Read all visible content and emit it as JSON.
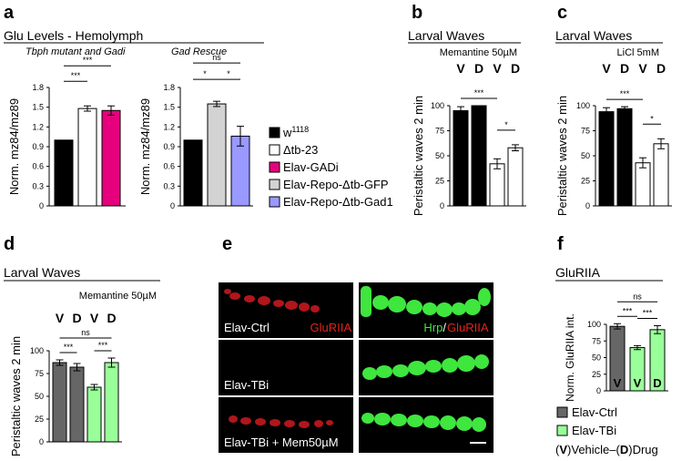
{
  "panels": {
    "a": {
      "letter": "a",
      "title": "Glu Levels - Hemolymph",
      "sub_left": "Tbph mutant and Gadi",
      "sub_right": "Gad Rescue"
    },
    "b": {
      "letter": "b",
      "title": "Larval Waves",
      "condition": "Memantine 50µM"
    },
    "c": {
      "letter": "c",
      "title": "Larval Waves",
      "condition": "LiCl 5mM"
    },
    "d": {
      "letter": "d",
      "title": "Larval Waves",
      "condition": "Memantine 50µM"
    },
    "e": {
      "letter": "e",
      "rows": [
        "Elav-Ctrl",
        "Elav-TBi",
        "Elav-TBi + Mem50µM"
      ],
      "stain_left": "GluRIIA",
      "stain_right_green": "Hrp",
      "stain_right_sep": "/",
      "stain_right_red": "GluRIIA"
    },
    "f": {
      "letter": "f",
      "title": "GluRIIA"
    }
  },
  "legend_a": [
    {
      "label": "w",
      "sup": "1118",
      "color": "#000000"
    },
    {
      "label": "Δtb-23",
      "color": "#ffffff"
    },
    {
      "label": "Elav-GADi",
      "color": "#e6007e"
    },
    {
      "label": "Elav-Repo-Δtb-GFP",
      "color": "#d3d3d3"
    },
    {
      "label": "Elav-Repo-Δtb-Gad1",
      "color": "#9999ff"
    }
  ],
  "legend_f": [
    {
      "label": "Elav-Ctrl",
      "color": "#666666"
    },
    {
      "label": "Elav-TBi",
      "color": "#99ff99"
    }
  ],
  "legend_f_note": {
    "v": "V",
    "vtext": "Vehicle–(",
    "d": "D",
    "dtext": ")Drug"
  },
  "chart_data": [
    {
      "id": "a_left",
      "type": "bar",
      "ylabel": "Norm. mz84/mz89",
      "ylim": [
        0,
        1.8
      ],
      "yticks": [
        "0",
        "0.3",
        "0.6",
        "0.9",
        "1.2",
        "1.5",
        "1.8"
      ],
      "values": [
        1.0,
        1.48,
        1.45
      ],
      "errors": [
        0,
        0.04,
        0.07
      ],
      "colors": [
        "#000000",
        "#ffffff",
        "#e6007e"
      ],
      "sig": [
        "***",
        "***"
      ]
    },
    {
      "id": "a_right",
      "type": "bar",
      "ylabel": "Norm. mz84/mz89",
      "ylim": [
        0,
        1.8
      ],
      "yticks": [
        "0",
        "0.3",
        "0.6",
        "0.9",
        "1.2",
        "1.5",
        "1.8"
      ],
      "values": [
        1.0,
        1.55,
        1.06
      ],
      "errors": [
        0,
        0.04,
        0.15
      ],
      "colors": [
        "#000000",
        "#d3d3d3",
        "#9999ff"
      ],
      "sig": [
        "ns",
        "*",
        "*"
      ]
    },
    {
      "id": "b",
      "type": "bar",
      "ylabel": "Peristaltic waves 2 min",
      "ylim": [
        0,
        100
      ],
      "yticks": [
        "0",
        "25",
        "50",
        "75",
        "100"
      ],
      "bar_labels": [
        "V",
        "D",
        "V",
        "D"
      ],
      "values": [
        95,
        100,
        42,
        58
      ],
      "errors": [
        4,
        0,
        5,
        3
      ],
      "colors": [
        "#000000",
        "#000000",
        "#ffffff",
        "#ffffff"
      ],
      "sig": [
        "***",
        "*"
      ]
    },
    {
      "id": "c",
      "type": "bar",
      "ylabel": "Peristaltic waves 2 min",
      "ylim": [
        0,
        100
      ],
      "yticks": [
        "0",
        "25",
        "50",
        "75",
        "100"
      ],
      "bar_labels": [
        "V",
        "D",
        "V",
        "D"
      ],
      "values": [
        94,
        97,
        43,
        62
      ],
      "errors": [
        4,
        2,
        5,
        5
      ],
      "colors": [
        "#000000",
        "#000000",
        "#ffffff",
        "#ffffff"
      ],
      "sig": [
        "***",
        "*"
      ]
    },
    {
      "id": "d",
      "type": "bar",
      "ylabel": "Peristaltic waves 2 min",
      "ylim": [
        0,
        100
      ],
      "yticks": [
        "0",
        "25",
        "50",
        "75",
        "100"
      ],
      "bar_labels": [
        "V",
        "D",
        "V",
        "D"
      ],
      "values": [
        87,
        82,
        60,
        87
      ],
      "errors": [
        3,
        4,
        3,
        5
      ],
      "colors": [
        "#666666",
        "#666666",
        "#99ff99",
        "#99ff99"
      ],
      "sig": [
        "***",
        "***",
        "ns"
      ]
    },
    {
      "id": "f",
      "type": "bar",
      "ylabel": "Norm. GluRIIA int.",
      "ylim": [
        0,
        100
      ],
      "yticks": [
        "0",
        "25",
        "50",
        "75",
        "100"
      ],
      "bar_labels": [
        "V",
        "V",
        "D"
      ],
      "values": [
        97,
        65,
        92
      ],
      "errors": [
        4,
        3,
        6
      ],
      "colors": [
        "#666666",
        "#99ff99",
        "#99ff99"
      ],
      "sig": [
        "***",
        "***",
        "ns"
      ]
    }
  ]
}
